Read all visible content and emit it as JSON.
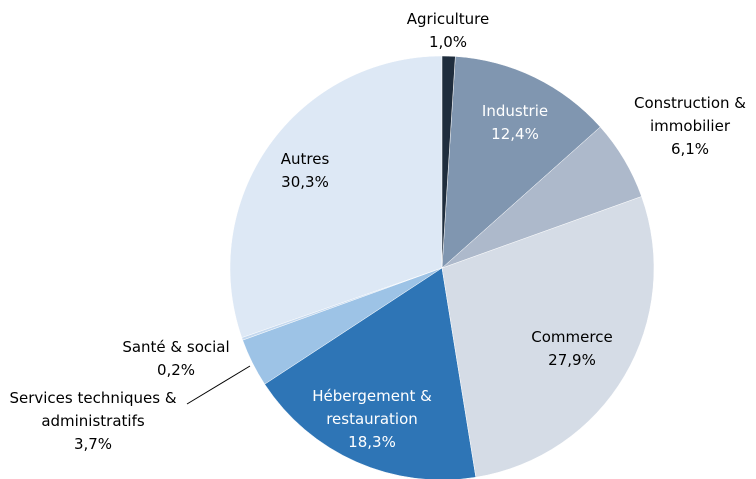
{
  "chart_data": {
    "type": "pie",
    "categories": [
      "Agriculture",
      "Industrie",
      "Construction & immobilier",
      "Commerce",
      "Hébergement & restauration",
      "Services techniques & administratifs",
      "Santé & social",
      "Autres"
    ],
    "values": [
      1.0,
      12.4,
      6.1,
      27.9,
      18.3,
      3.7,
      0.2,
      30.3
    ],
    "value_labels": [
      "1,0%",
      "12,4%",
      "6,1%",
      "27,9%",
      "18,3%",
      "3,7%",
      "0,2%",
      "30,3%"
    ],
    "colors": [
      "#1f2d3d",
      "#8096b0",
      "#adb9cb",
      "#d5dce6",
      "#2e75b6",
      "#9dc3e6",
      "#c5d9ef",
      "#dde8f5"
    ]
  }
}
